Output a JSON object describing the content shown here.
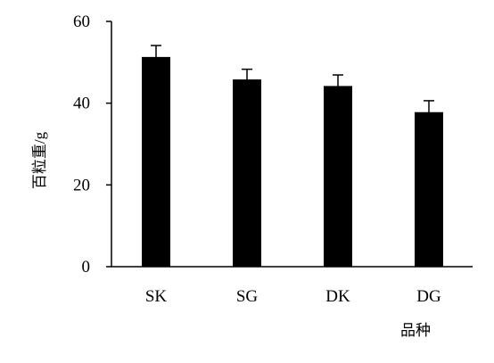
{
  "chart_data": {
    "type": "bar",
    "title": "",
    "xlabel": "品种",
    "ylabel": "百粒重/g",
    "categories": [
      "SK",
      "SG",
      "DK",
      "DG"
    ],
    "values": [
      51.3,
      45.8,
      44.2,
      37.8
    ],
    "error_bars": [
      2.8,
      2.5,
      2.7,
      2.8
    ],
    "ylim": [
      0,
      60
    ],
    "yticks": [
      "0",
      "20",
      "40",
      "60"
    ],
    "grid": false,
    "legend": "none",
    "bar_color": "#000000",
    "error_bar_color": "#000000",
    "axis_color": "#000000"
  }
}
